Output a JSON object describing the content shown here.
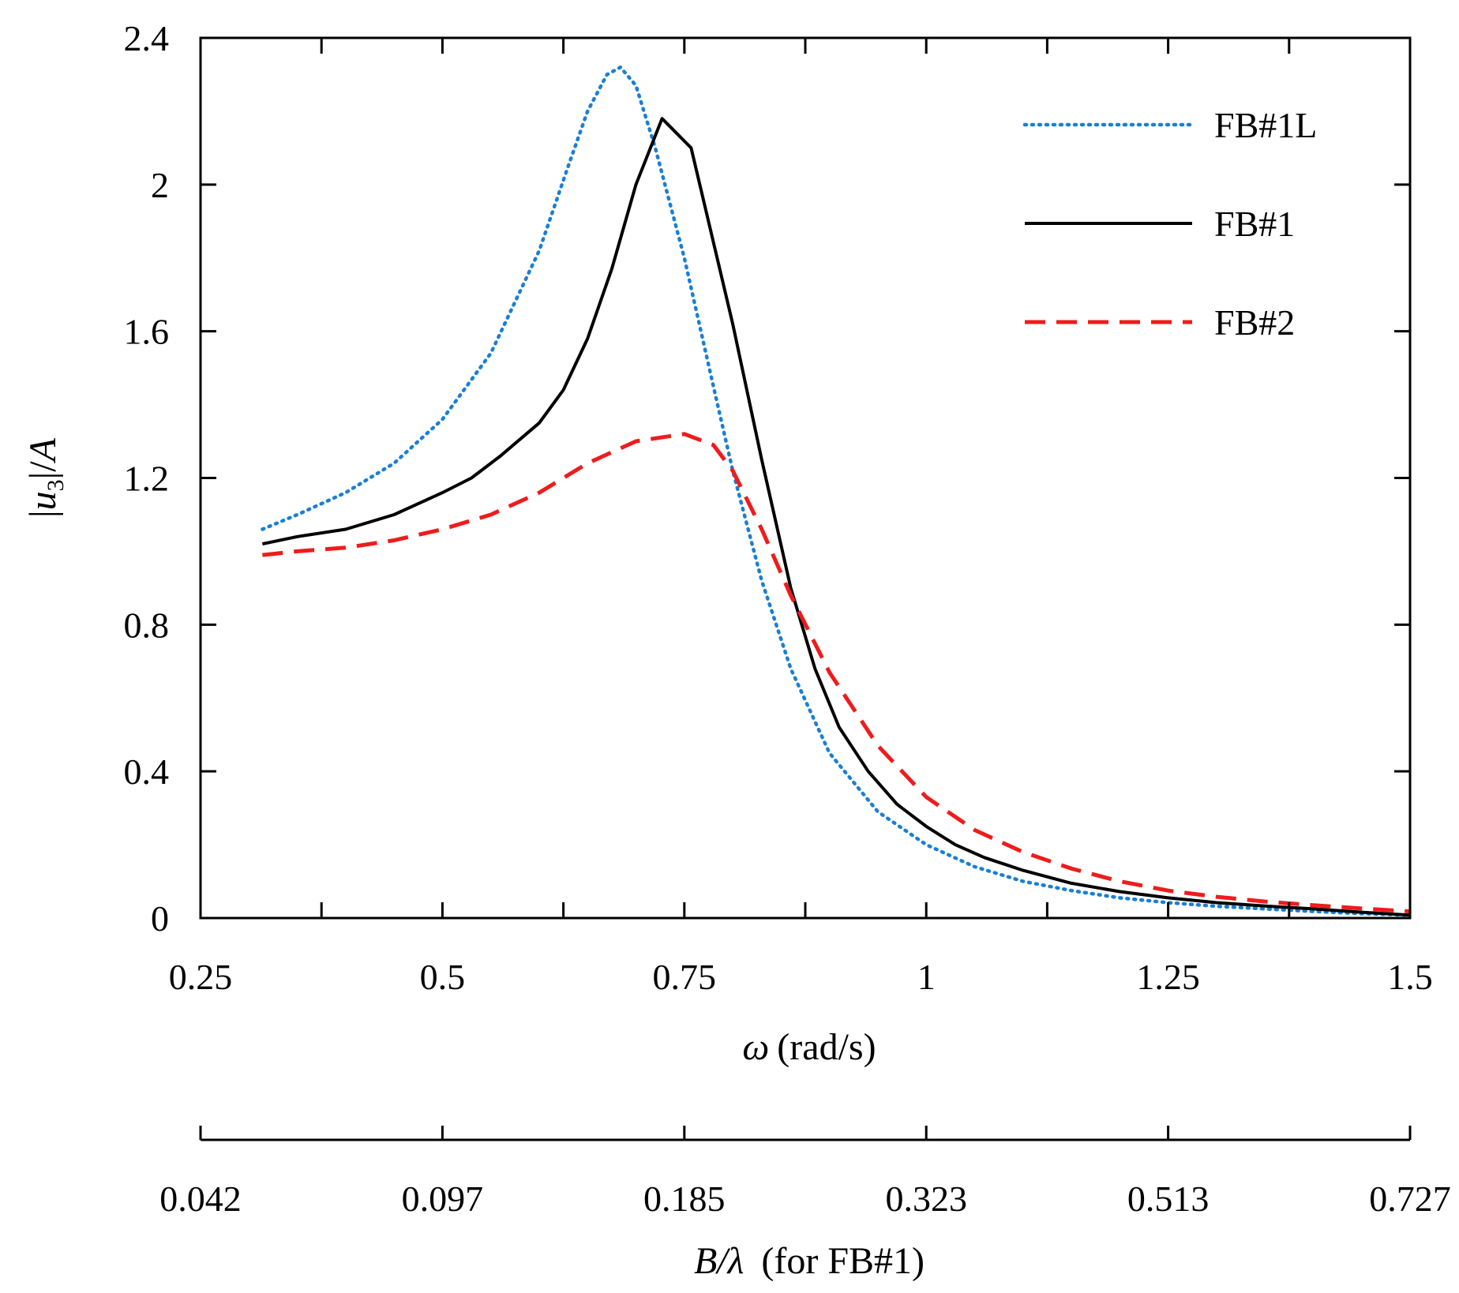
{
  "chart_data": {
    "type": "line",
    "xlabel": {
      "symbol": "ω",
      "unit": "(rad/s)"
    },
    "ylabel": {
      "prefix": "|",
      "symbol": "u",
      "subscript": "3",
      "suffix": "|/",
      "denom": "A"
    },
    "xlim": [
      0.25,
      1.5
    ],
    "ylim": [
      0,
      2.4
    ],
    "x_ticks": [
      0.25,
      0.5,
      0.75,
      1,
      1.25,
      1.5
    ],
    "x_tick_labels": [
      "0.25",
      "0.5",
      "0.75",
      "1",
      "1.25",
      "1.5"
    ],
    "y_ticks": [
      0,
      0.4,
      0.8,
      1.2,
      1.6,
      2,
      2.4
    ],
    "y_tick_labels": [
      "0",
      "0.4",
      "0.8",
      "1.2",
      "1.6",
      "2",
      "2.4"
    ],
    "secondary_axis": {
      "label": {
        "symbol": "B/λ",
        "note": "(for FB#1)"
      },
      "ticks_at_omega": [
        0.25,
        0.5,
        0.75,
        1,
        1.25,
        1.5
      ],
      "tick_labels": [
        "0.042",
        "0.097",
        "0.185",
        "0.323",
        "0.513",
        "0.727"
      ]
    },
    "legend_position": "top-right",
    "series": [
      {
        "name": "FB#1L",
        "color": "#1a7fd4",
        "style": "dotted",
        "x": [
          0.314,
          0.35,
          0.4,
          0.45,
          0.5,
          0.55,
          0.6,
          0.63,
          0.65,
          0.67,
          0.684,
          0.7,
          0.72,
          0.75,
          0.78,
          0.8,
          0.83,
          0.86,
          0.9,
          0.95,
          1.0,
          1.05,
          1.1,
          1.15,
          1.2,
          1.25,
          1.3,
          1.35,
          1.4,
          1.45,
          1.5
        ],
        "values": [
          1.06,
          1.1,
          1.16,
          1.24,
          1.36,
          1.54,
          1.82,
          2.05,
          2.2,
          2.3,
          2.32,
          2.27,
          2.1,
          1.8,
          1.45,
          1.22,
          0.92,
          0.68,
          0.45,
          0.29,
          0.2,
          0.14,
          0.1,
          0.075,
          0.055,
          0.042,
          0.032,
          0.025,
          0.018,
          0.012,
          0.008
        ]
      },
      {
        "name": "FB#1",
        "color": "#000000",
        "style": "solid",
        "x": [
          0.314,
          0.35,
          0.4,
          0.45,
          0.5,
          0.53,
          0.56,
          0.6,
          0.625,
          0.65,
          0.675,
          0.7,
          0.727,
          0.757,
          0.8,
          0.83,
          0.86,
          0.885,
          0.91,
          0.94,
          0.97,
          1.0,
          1.03,
          1.06,
          1.1,
          1.15,
          1.2,
          1.25,
          1.3,
          1.35,
          1.4,
          1.45,
          1.5
        ],
        "values": [
          1.02,
          1.04,
          1.06,
          1.1,
          1.16,
          1.2,
          1.26,
          1.35,
          1.44,
          1.58,
          1.77,
          2.0,
          2.18,
          2.1,
          1.62,
          1.25,
          0.9,
          0.68,
          0.52,
          0.4,
          0.31,
          0.25,
          0.2,
          0.165,
          0.13,
          0.095,
          0.072,
          0.055,
          0.042,
          0.033,
          0.025,
          0.016,
          0.008
        ]
      },
      {
        "name": "FB#2",
        "color": "#ee1c1c",
        "style": "dashed",
        "x": [
          0.314,
          0.35,
          0.4,
          0.45,
          0.5,
          0.55,
          0.6,
          0.65,
          0.7,
          0.75,
          0.78,
          0.8,
          0.83,
          0.86,
          0.9,
          0.95,
          1.0,
          1.05,
          1.1,
          1.15,
          1.2,
          1.25,
          1.3,
          1.35,
          1.4,
          1.45,
          1.5
        ],
        "values": [
          0.99,
          1.0,
          1.01,
          1.03,
          1.06,
          1.1,
          1.16,
          1.24,
          1.3,
          1.32,
          1.29,
          1.22,
          1.06,
          0.88,
          0.67,
          0.47,
          0.33,
          0.24,
          0.18,
          0.135,
          0.1,
          0.075,
          0.058,
          0.045,
          0.035,
          0.026,
          0.018
        ]
      }
    ]
  }
}
